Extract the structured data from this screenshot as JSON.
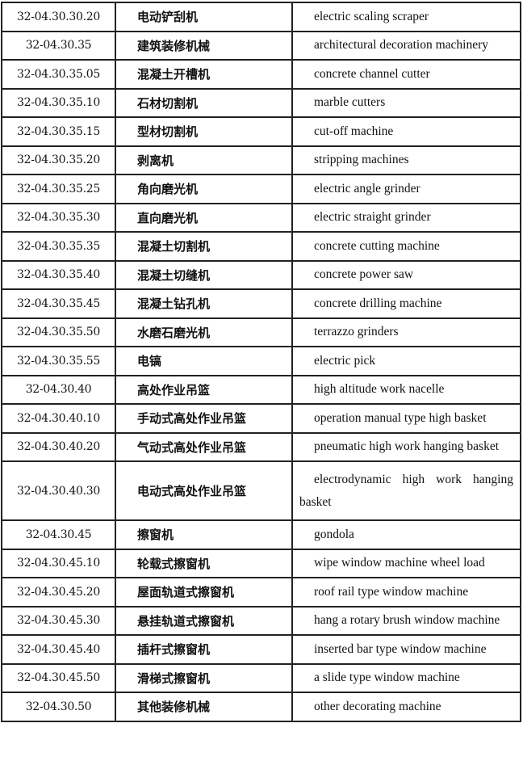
{
  "rows": [
    {
      "code": "32-04.30.30.20",
      "cn": "电动铲刮机",
      "en": "electric scaling scraper"
    },
    {
      "code": "32-04.30.35",
      "cn": "建筑装修机械",
      "en": "architectural decoration machinery"
    },
    {
      "code": "32-04.30.35.05",
      "cn": "混凝土开槽机",
      "en": "concrete channel cutter"
    },
    {
      "code": "32-04.30.35.10",
      "cn": "石材切割机",
      "en": "marble cutters"
    },
    {
      "code": "32-04.30.35.15",
      "cn": "型材切割机",
      "en": "cut-off machine"
    },
    {
      "code": "32-04.30.35.20",
      "cn": "剥离机",
      "en": "stripping machines"
    },
    {
      "code": "32-04.30.35.25",
      "cn": "角向磨光机",
      "en": "electric angle grinder"
    },
    {
      "code": "32-04.30.35.30",
      "cn": "直向磨光机",
      "en": "electric straight grinder"
    },
    {
      "code": "32-04.30.35.35",
      "cn": "混凝土切割机",
      "en": "concrete cutting machine"
    },
    {
      "code": "32-04.30.35.40",
      "cn": "混凝土切缝机",
      "en": "concrete power saw"
    },
    {
      "code": "32-04.30.35.45",
      "cn": "混凝土钻孔机",
      "en": "concrete drilling machine"
    },
    {
      "code": "32-04.30.35.50",
      "cn": "水磨石磨光机",
      "en": "terrazzo grinders"
    },
    {
      "code": "32-04.30.35.55",
      "cn": "电镐",
      "en": "electric pick"
    },
    {
      "code": "32-04.30.40",
      "cn": "高处作业吊篮",
      "en": "high altitude work nacelle"
    },
    {
      "code": "32-04.30.40.10",
      "cn": "手动式高处作业吊篮",
      "en": "operation manual type high basket"
    },
    {
      "code": "32-04.30.40.20",
      "cn": "气动式高处作业吊篮",
      "en": "pneumatic high work hanging basket"
    },
    {
      "code": "32-04.30.40.30",
      "cn": "电动式高处作业吊篮",
      "en": "electrodynamic high work hanging basket"
    },
    {
      "code": "32-04.30.45",
      "cn": "擦窗机",
      "en": "gondola"
    },
    {
      "code": "32-04.30.45.10",
      "cn": "轮载式擦窗机",
      "en": "wipe window machine wheel load"
    },
    {
      "code": "32-04.30.45.20",
      "cn": "屋面轨道式擦窗机",
      "en": "roof rail type window machine"
    },
    {
      "code": "32-04.30.45.30",
      "cn": "悬挂轨道式擦窗机",
      "en": "hang a rotary brush window machine"
    },
    {
      "code": "32-04.30.45.40",
      "cn": "插杆式擦窗机",
      "en": "inserted bar type window machine"
    },
    {
      "code": "32-04.30.45.50",
      "cn": "滑梯式擦窗机",
      "en": "a slide type window machine"
    },
    {
      "code": "32-04.30.50",
      "cn": "其他装修机械",
      "en": "other decorating machine"
    }
  ]
}
